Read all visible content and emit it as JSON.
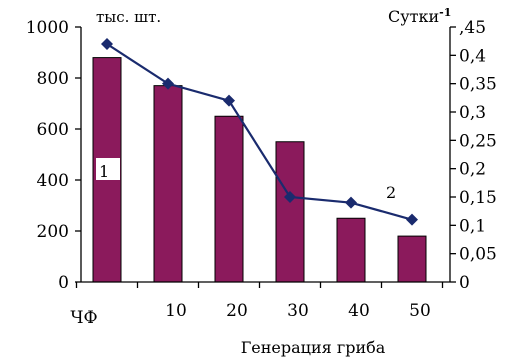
{
  "chart_data": {
    "type": "bar",
    "categories": [
      "ЧФ",
      "10",
      "20",
      "30",
      "40",
      "50"
    ],
    "bar_series": {
      "name": "1",
      "unit_label": "тыс. шт.",
      "values": [
        880,
        770,
        650,
        550,
        250,
        180
      ],
      "color": "#8b1a5c"
    },
    "line_series": {
      "name": "2",
      "unit_label": "Сутки",
      "unit_superscript": "-1",
      "values": [
        0.42,
        0.35,
        0.32,
        0.15,
        0.14,
        0.11
      ],
      "color": "#1a2b6e"
    },
    "xlabel": "Генерация гриба",
    "y_left": {
      "lim": [
        0,
        1000
      ],
      "ticks": [
        0,
        200,
        400,
        600,
        800,
        1000
      ]
    },
    "y_right": {
      "lim": [
        0,
        0.45
      ],
      "ticks": [
        0,
        0.05,
        0.1,
        0.15,
        0.2,
        0.25,
        0.3,
        0.35,
        0.4,
        0.45
      ],
      "tick_labels": [
        "0",
        "0,05",
        "0,1",
        "0,15",
        "0,2",
        "0,25",
        "0,3",
        "0,35",
        "0,4",
        ",45"
      ]
    },
    "grid": false
  }
}
